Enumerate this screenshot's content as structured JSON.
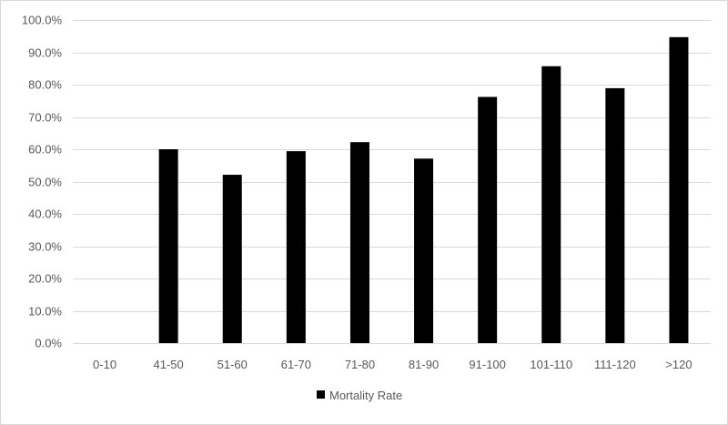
{
  "chart_data": {
    "type": "bar",
    "categories": [
      "0-10",
      "41-50",
      "51-60",
      "61-70",
      "71-80",
      "81-90",
      "91-100",
      "101-110",
      "111-120",
      ">120"
    ],
    "series": [
      {
        "name": "Mortality Rate",
        "values": [
          0.0,
          60.0,
          52.1,
          59.4,
          62.2,
          57.1,
          76.2,
          85.7,
          78.9,
          94.7
        ],
        "color": "#000000"
      }
    ],
    "y_ticks": [
      "0.0%",
      "10.0%",
      "20.0%",
      "30.0%",
      "40.0%",
      "50.0%",
      "60.0%",
      "70.0%",
      "80.0%",
      "90.0%",
      "100.0%"
    ],
    "ylim": [
      0,
      100
    ],
    "y_unit": "%",
    "grid": true,
    "legend_position": "bottom",
    "gridline_color": "#d9d9d9"
  }
}
